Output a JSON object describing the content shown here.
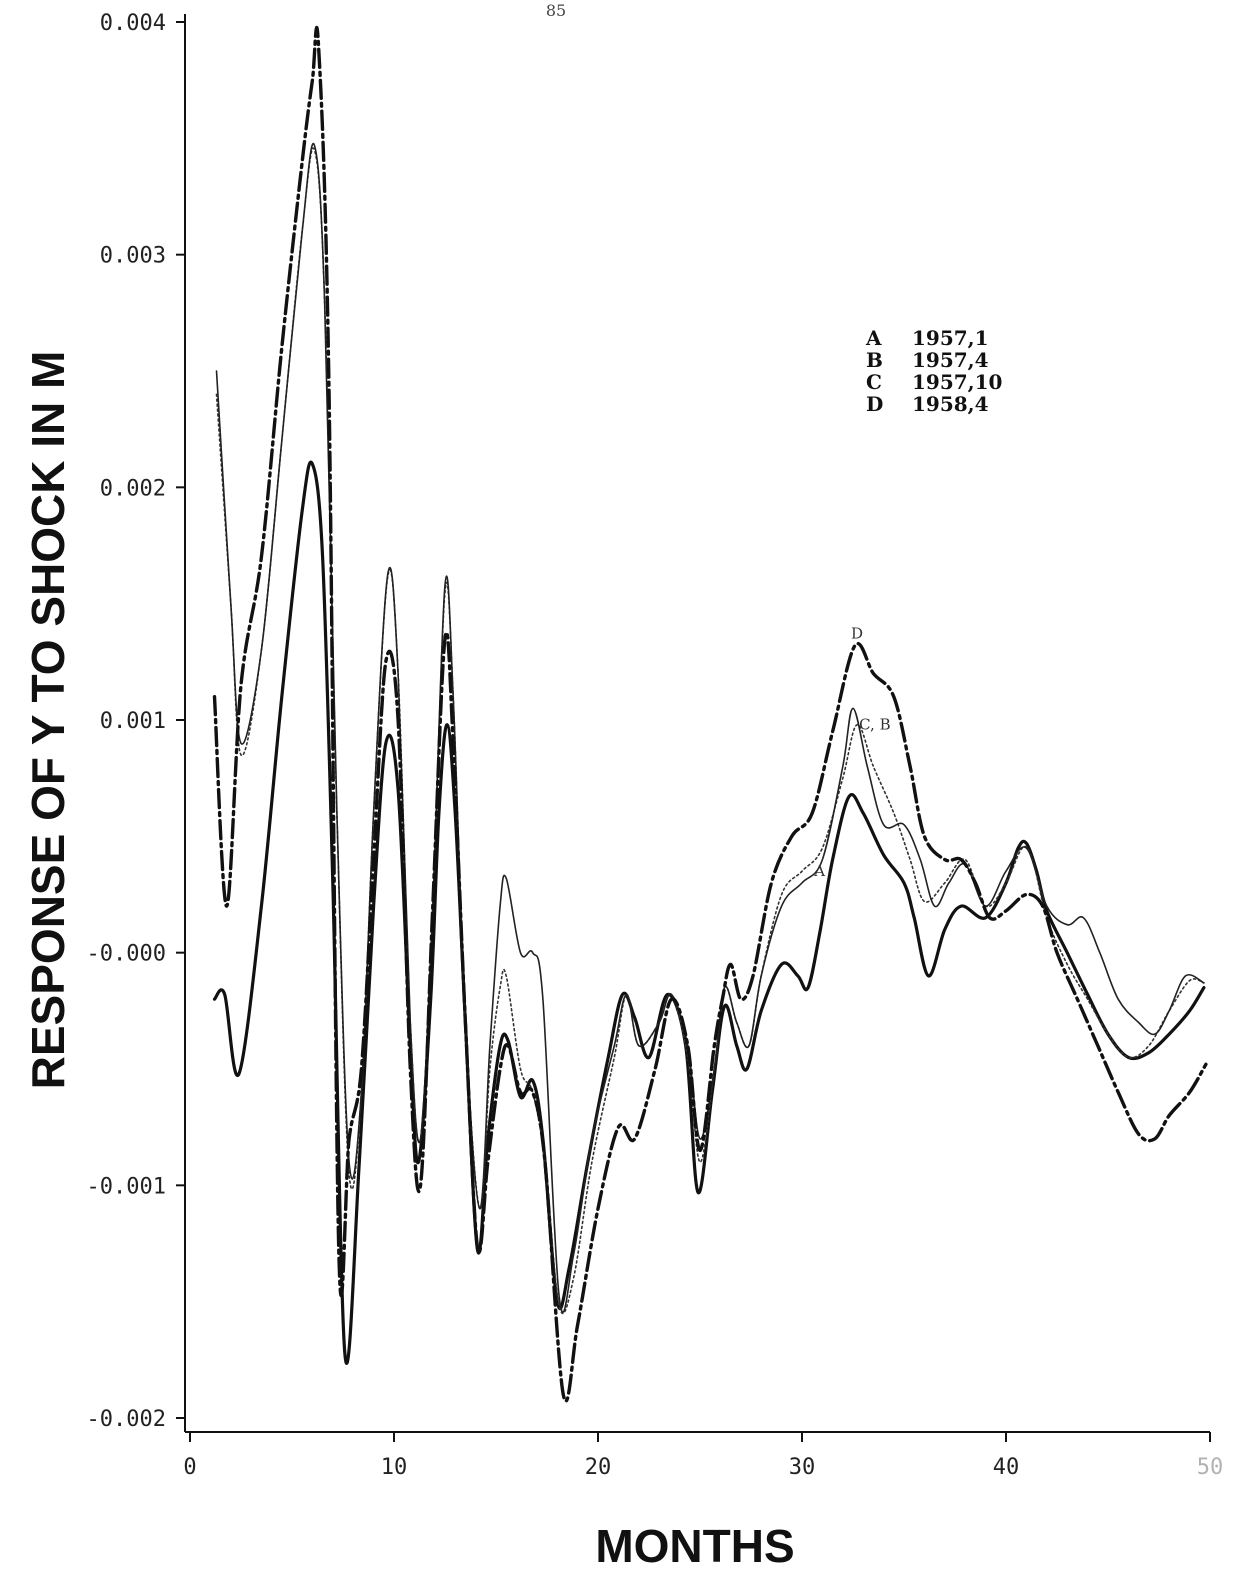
{
  "page_number": "85",
  "chart_data": {
    "type": "line",
    "title": "",
    "xlabel": "MONTHS",
    "ylabel": "RESPONSE OF Y TO SHOCK IN M",
    "xlim": [
      0,
      50
    ],
    "ylim": [
      -0.002,
      0.004
    ],
    "x_ticks": [
      {
        "value": 0,
        "label": "0"
      },
      {
        "value": 10,
        "label": "10"
      },
      {
        "value": 20,
        "label": "20"
      },
      {
        "value": 30,
        "label": "30"
      },
      {
        "value": 40,
        "label": "40"
      },
      {
        "value": 50,
        "label": "50"
      }
    ],
    "y_ticks": [
      {
        "value": 0.004,
        "label": "0.004"
      },
      {
        "value": 0.003,
        "label": "0.003"
      },
      {
        "value": 0.002,
        "label": "0.002"
      },
      {
        "value": 0.001,
        "label": "0.001"
      },
      {
        "value": 0.0,
        "label": "-0.000"
      },
      {
        "value": -0.001,
        "label": "-0.001"
      },
      {
        "value": -0.002,
        "label": "-0.002"
      }
    ],
    "legend": [
      {
        "key": "A",
        "label": "1957,1"
      },
      {
        "key": "B",
        "label": "1957,4"
      },
      {
        "key": "C",
        "label": "1957,10"
      },
      {
        "key": "D",
        "label": "1958,4"
      }
    ],
    "legend_position": "upper-right",
    "annotations": [
      {
        "text": "D",
        "x": 32.4,
        "y": 0.00135
      },
      {
        "text": "C, B",
        "x": 32.8,
        "y": 0.00096
      },
      {
        "text": "A",
        "x": 30.6,
        "y": 0.00033
      }
    ],
    "series": [
      {
        "name": "A",
        "style": "solid-heavy",
        "points": [
          [
            1.2,
            -0.0002
          ],
          [
            1.7,
            -0.00018
          ],
          [
            2.4,
            -0.00052
          ],
          [
            3.5,
            0.0002
          ],
          [
            4.5,
            0.0011
          ],
          [
            5.5,
            0.0019
          ],
          [
            6.0,
            0.0021
          ],
          [
            6.5,
            0.0017
          ],
          [
            7.0,
            0.0003
          ],
          [
            7.6,
            -0.00173
          ],
          [
            8.3,
            -0.0009
          ],
          [
            9.0,
            0.0002
          ],
          [
            9.6,
            0.0009
          ],
          [
            10.2,
            0.0007
          ],
          [
            10.8,
            -0.0004
          ],
          [
            11.2,
            -0.0009
          ],
          [
            11.8,
            -0.0002
          ],
          [
            12.2,
            0.0006
          ],
          [
            12.6,
            0.00098
          ],
          [
            13.0,
            0.0006
          ],
          [
            13.5,
            -0.0003
          ],
          [
            14.1,
            -0.00128
          ],
          [
            14.6,
            -0.0008
          ],
          [
            15.2,
            -0.0004
          ],
          [
            15.6,
            -0.00038
          ],
          [
            16.2,
            -0.00062
          ],
          [
            16.8,
            -0.00055
          ],
          [
            17.3,
            -0.0008
          ],
          [
            18.0,
            -0.0015
          ],
          [
            18.6,
            -0.00135
          ],
          [
            19.5,
            -0.0009
          ],
          [
            20.5,
            -0.00045
          ],
          [
            21.2,
            -0.00018
          ],
          [
            21.8,
            -0.00028
          ],
          [
            22.5,
            -0.00045
          ],
          [
            23.4,
            -0.00018
          ],
          [
            24.3,
            -0.0004
          ],
          [
            24.9,
            -0.00103
          ],
          [
            25.6,
            -0.0006
          ],
          [
            26.2,
            -0.00023
          ],
          [
            26.8,
            -0.0004
          ],
          [
            27.3,
            -0.0005
          ],
          [
            28.0,
            -0.00025
          ],
          [
            29.0,
            -5e-05
          ],
          [
            29.8,
            -0.0001
          ],
          [
            30.3,
            -0.00015
          ],
          [
            30.9,
            0.0001
          ],
          [
            31.5,
            0.0004
          ],
          [
            32.3,
            0.00067
          ],
          [
            33.0,
            0.0006
          ],
          [
            34.0,
            0.00042
          ],
          [
            35.0,
            0.0003
          ],
          [
            35.5,
            0.00015
          ],
          [
            36.2,
            -0.0001
          ],
          [
            37.0,
            0.0001
          ],
          [
            37.8,
            0.0002
          ],
          [
            39.0,
            0.00015
          ],
          [
            40.0,
            0.0003
          ],
          [
            40.6,
            0.00045
          ],
          [
            41.0,
            0.00047
          ],
          [
            41.5,
            0.00035
          ],
          [
            42.0,
            0.00018
          ],
          [
            43.0,
            0.0
          ],
          [
            44.0,
            -0.00018
          ],
          [
            45.0,
            -0.00035
          ],
          [
            46.0,
            -0.00045
          ],
          [
            47.0,
            -0.00043
          ],
          [
            48.0,
            -0.00035
          ],
          [
            49.0,
            -0.00025
          ],
          [
            49.7,
            -0.00015
          ]
        ]
      },
      {
        "name": "B",
        "style": "dotted",
        "points": [
          [
            1.3,
            0.0024
          ],
          [
            2.0,
            0.0015
          ],
          [
            2.5,
            0.00085
          ],
          [
            3.5,
            0.0013
          ],
          [
            4.5,
            0.0022
          ],
          [
            5.5,
            0.0031
          ],
          [
            6.1,
            0.00345
          ],
          [
            6.6,
            0.0028
          ],
          [
            7.2,
            0.0006
          ],
          [
            7.8,
            -0.00095
          ],
          [
            8.4,
            -0.0006
          ],
          [
            9.0,
            0.0006
          ],
          [
            9.7,
            0.00162
          ],
          [
            10.2,
            0.0012
          ],
          [
            10.8,
            -0.0003
          ],
          [
            11.3,
            -0.0008
          ],
          [
            11.9,
            0.0002
          ],
          [
            12.5,
            0.00155
          ],
          [
            12.9,
            0.0011
          ],
          [
            13.5,
            -0.0003
          ],
          [
            14.2,
            -0.0011
          ],
          [
            14.7,
            -0.0005
          ],
          [
            15.2,
            -0.00015
          ],
          [
            15.5,
            -0.0001
          ],
          [
            16.2,
            -0.0005
          ],
          [
            16.8,
            -0.0006
          ],
          [
            17.4,
            -0.0009
          ],
          [
            18.1,
            -0.00152
          ],
          [
            18.8,
            -0.0014
          ],
          [
            19.7,
            -0.0009
          ],
          [
            20.8,
            -0.00045
          ],
          [
            21.4,
            -0.00018
          ],
          [
            22.0,
            -0.0004
          ],
          [
            23.0,
            -0.0003
          ],
          [
            23.6,
            -0.00018
          ],
          [
            24.4,
            -0.00045
          ],
          [
            25.0,
            -0.0009
          ],
          [
            25.7,
            -0.0005
          ],
          [
            26.2,
            -0.00015
          ],
          [
            26.8,
            -0.0003
          ],
          [
            27.4,
            -0.0004
          ],
          [
            28.0,
            -0.0001
          ],
          [
            29.0,
            0.00025
          ],
          [
            30.0,
            0.00035
          ],
          [
            31.0,
            0.00045
          ],
          [
            32.0,
            0.00075
          ],
          [
            32.7,
            0.00098
          ],
          [
            33.5,
            0.0008
          ],
          [
            34.5,
            0.0006
          ],
          [
            35.3,
            0.0004
          ],
          [
            36.0,
            0.00022
          ],
          [
            37.0,
            0.0003
          ],
          [
            38.0,
            0.0004
          ],
          [
            39.0,
            0.0002
          ],
          [
            40.0,
            0.0003
          ],
          [
            40.8,
            0.00045
          ],
          [
            41.3,
            0.0004
          ],
          [
            42.0,
            0.00015
          ],
          [
            43.0,
            -5e-05
          ],
          [
            44.0,
            -0.0002
          ],
          [
            45.0,
            -0.00035
          ],
          [
            46.0,
            -0.00045
          ],
          [
            47.0,
            -0.0004
          ],
          [
            48.0,
            -0.00025
          ],
          [
            49.0,
            -0.00012
          ],
          [
            49.7,
            -0.00013
          ]
        ]
      },
      {
        "name": "C",
        "style": "solid-thin",
        "points": [
          [
            1.3,
            0.0025
          ],
          [
            2.0,
            0.0015
          ],
          [
            2.5,
            0.0009
          ],
          [
            3.5,
            0.0013
          ],
          [
            4.5,
            0.0022
          ],
          [
            5.5,
            0.0031
          ],
          [
            6.1,
            0.00347
          ],
          [
            6.6,
            0.0028
          ],
          [
            7.2,
            0.0006
          ],
          [
            7.8,
            -0.0009
          ],
          [
            8.4,
            -0.0006
          ],
          [
            9.0,
            0.0006
          ],
          [
            9.7,
            0.00163
          ],
          [
            10.2,
            0.0012
          ],
          [
            10.8,
            -0.0003
          ],
          [
            11.3,
            -0.0008
          ],
          [
            11.9,
            0.0002
          ],
          [
            12.5,
            0.00158
          ],
          [
            12.9,
            0.0011
          ],
          [
            13.5,
            -0.0003
          ],
          [
            14.2,
            -0.0011
          ],
          [
            14.7,
            -0.0004
          ],
          [
            15.2,
            0.0002
          ],
          [
            15.5,
            0.00032
          ],
          [
            16.2,
            0.0
          ],
          [
            16.8,
            0.0
          ],
          [
            17.3,
            -0.0002
          ],
          [
            18.1,
            -0.00148
          ],
          [
            18.8,
            -0.0013
          ],
          [
            19.7,
            -0.0008
          ],
          [
            20.8,
            -0.0004
          ],
          [
            21.4,
            -0.00018
          ],
          [
            22.0,
            -0.0004
          ],
          [
            23.0,
            -0.0003
          ],
          [
            23.6,
            -0.00018
          ],
          [
            24.4,
            -0.0004
          ],
          [
            25.0,
            -0.0008
          ],
          [
            25.7,
            -0.0005
          ],
          [
            26.2,
            -0.00015
          ],
          [
            26.8,
            -0.0003
          ],
          [
            27.4,
            -0.0004
          ],
          [
            28.0,
            -0.0001
          ],
          [
            29.0,
            0.0002
          ],
          [
            30.0,
            0.0003
          ],
          [
            31.0,
            0.0004
          ],
          [
            32.0,
            0.0008
          ],
          [
            32.5,
            0.00105
          ],
          [
            33.2,
            0.0008
          ],
          [
            34.0,
            0.00055
          ],
          [
            35.0,
            0.00055
          ],
          [
            35.8,
            0.0004
          ],
          [
            36.5,
            0.0002
          ],
          [
            37.2,
            0.0003
          ],
          [
            38.0,
            0.00038
          ],
          [
            39.0,
            0.0002
          ],
          [
            40.0,
            0.00035
          ],
          [
            41.0,
            0.00045
          ],
          [
            42.0,
            0.0002
          ],
          [
            43.0,
            0.00012
          ],
          [
            43.8,
            0.00015
          ],
          [
            44.6,
            0.0
          ],
          [
            45.5,
            -0.0002
          ],
          [
            46.5,
            -0.0003
          ],
          [
            47.3,
            -0.00035
          ],
          [
            48.0,
            -0.00025
          ],
          [
            48.8,
            -0.0001
          ],
          [
            49.7,
            -0.00013
          ]
        ]
      },
      {
        "name": "D",
        "style": "dash-dot-heavy",
        "points": [
          [
            1.2,
            0.0011
          ],
          [
            1.8,
            0.0002
          ],
          [
            2.5,
            0.00115
          ],
          [
            3.5,
            0.0017
          ],
          [
            4.5,
            0.0026
          ],
          [
            5.5,
            0.0034
          ],
          [
            6.0,
            0.00375
          ],
          [
            6.3,
            0.0039
          ],
          [
            6.8,
            0.0025
          ],
          [
            7.3,
            -0.0013
          ],
          [
            7.8,
            -0.0008
          ],
          [
            8.4,
            -0.0005
          ],
          [
            9.0,
            0.0004
          ],
          [
            9.6,
            0.00125
          ],
          [
            10.2,
            0.001
          ],
          [
            10.8,
            -0.0005
          ],
          [
            11.3,
            -0.001
          ],
          [
            11.9,
            0.0002
          ],
          [
            12.5,
            0.00135
          ],
          [
            12.9,
            0.0009
          ],
          [
            13.5,
            -0.0003
          ],
          [
            14.1,
            -0.00127
          ],
          [
            14.6,
            -0.0009
          ],
          [
            15.2,
            -0.0005
          ],
          [
            15.6,
            -0.0004
          ],
          [
            16.2,
            -0.0006
          ],
          [
            16.8,
            -0.0006
          ],
          [
            17.4,
            -0.0009
          ],
          [
            18.3,
            -0.0019
          ],
          [
            19.0,
            -0.0016
          ],
          [
            20.0,
            -0.0011
          ],
          [
            21.0,
            -0.00075
          ],
          [
            21.8,
            -0.0008
          ],
          [
            22.8,
            -0.0005
          ],
          [
            23.6,
            -0.0002
          ],
          [
            24.4,
            -0.0004
          ],
          [
            25.0,
            -0.00085
          ],
          [
            25.7,
            -0.0004
          ],
          [
            26.1,
            -0.0002
          ],
          [
            26.5,
            -5e-05
          ],
          [
            27.0,
            -0.0002
          ],
          [
            27.6,
            -0.0001
          ],
          [
            28.5,
            0.0003
          ],
          [
            29.5,
            0.0005
          ],
          [
            30.5,
            0.0006
          ],
          [
            31.5,
            0.00095
          ],
          [
            32.6,
            0.00132
          ],
          [
            33.5,
            0.0012
          ],
          [
            34.5,
            0.0011
          ],
          [
            35.3,
            0.0008
          ],
          [
            36.0,
            0.0005
          ],
          [
            37.0,
            0.0004
          ],
          [
            37.8,
            0.0004
          ],
          [
            38.5,
            0.0003
          ],
          [
            39.2,
            0.00015
          ],
          [
            40.0,
            0.00018
          ],
          [
            41.0,
            0.00025
          ],
          [
            41.8,
            0.0002
          ],
          [
            42.5,
            0.0
          ],
          [
            43.5,
            -0.0002
          ],
          [
            44.5,
            -0.0004
          ],
          [
            45.5,
            -0.0006
          ],
          [
            46.5,
            -0.00078
          ],
          [
            47.3,
            -0.0008
          ],
          [
            48.0,
            -0.0007
          ],
          [
            49.0,
            -0.0006
          ],
          [
            49.8,
            -0.00048
          ]
        ]
      }
    ]
  }
}
